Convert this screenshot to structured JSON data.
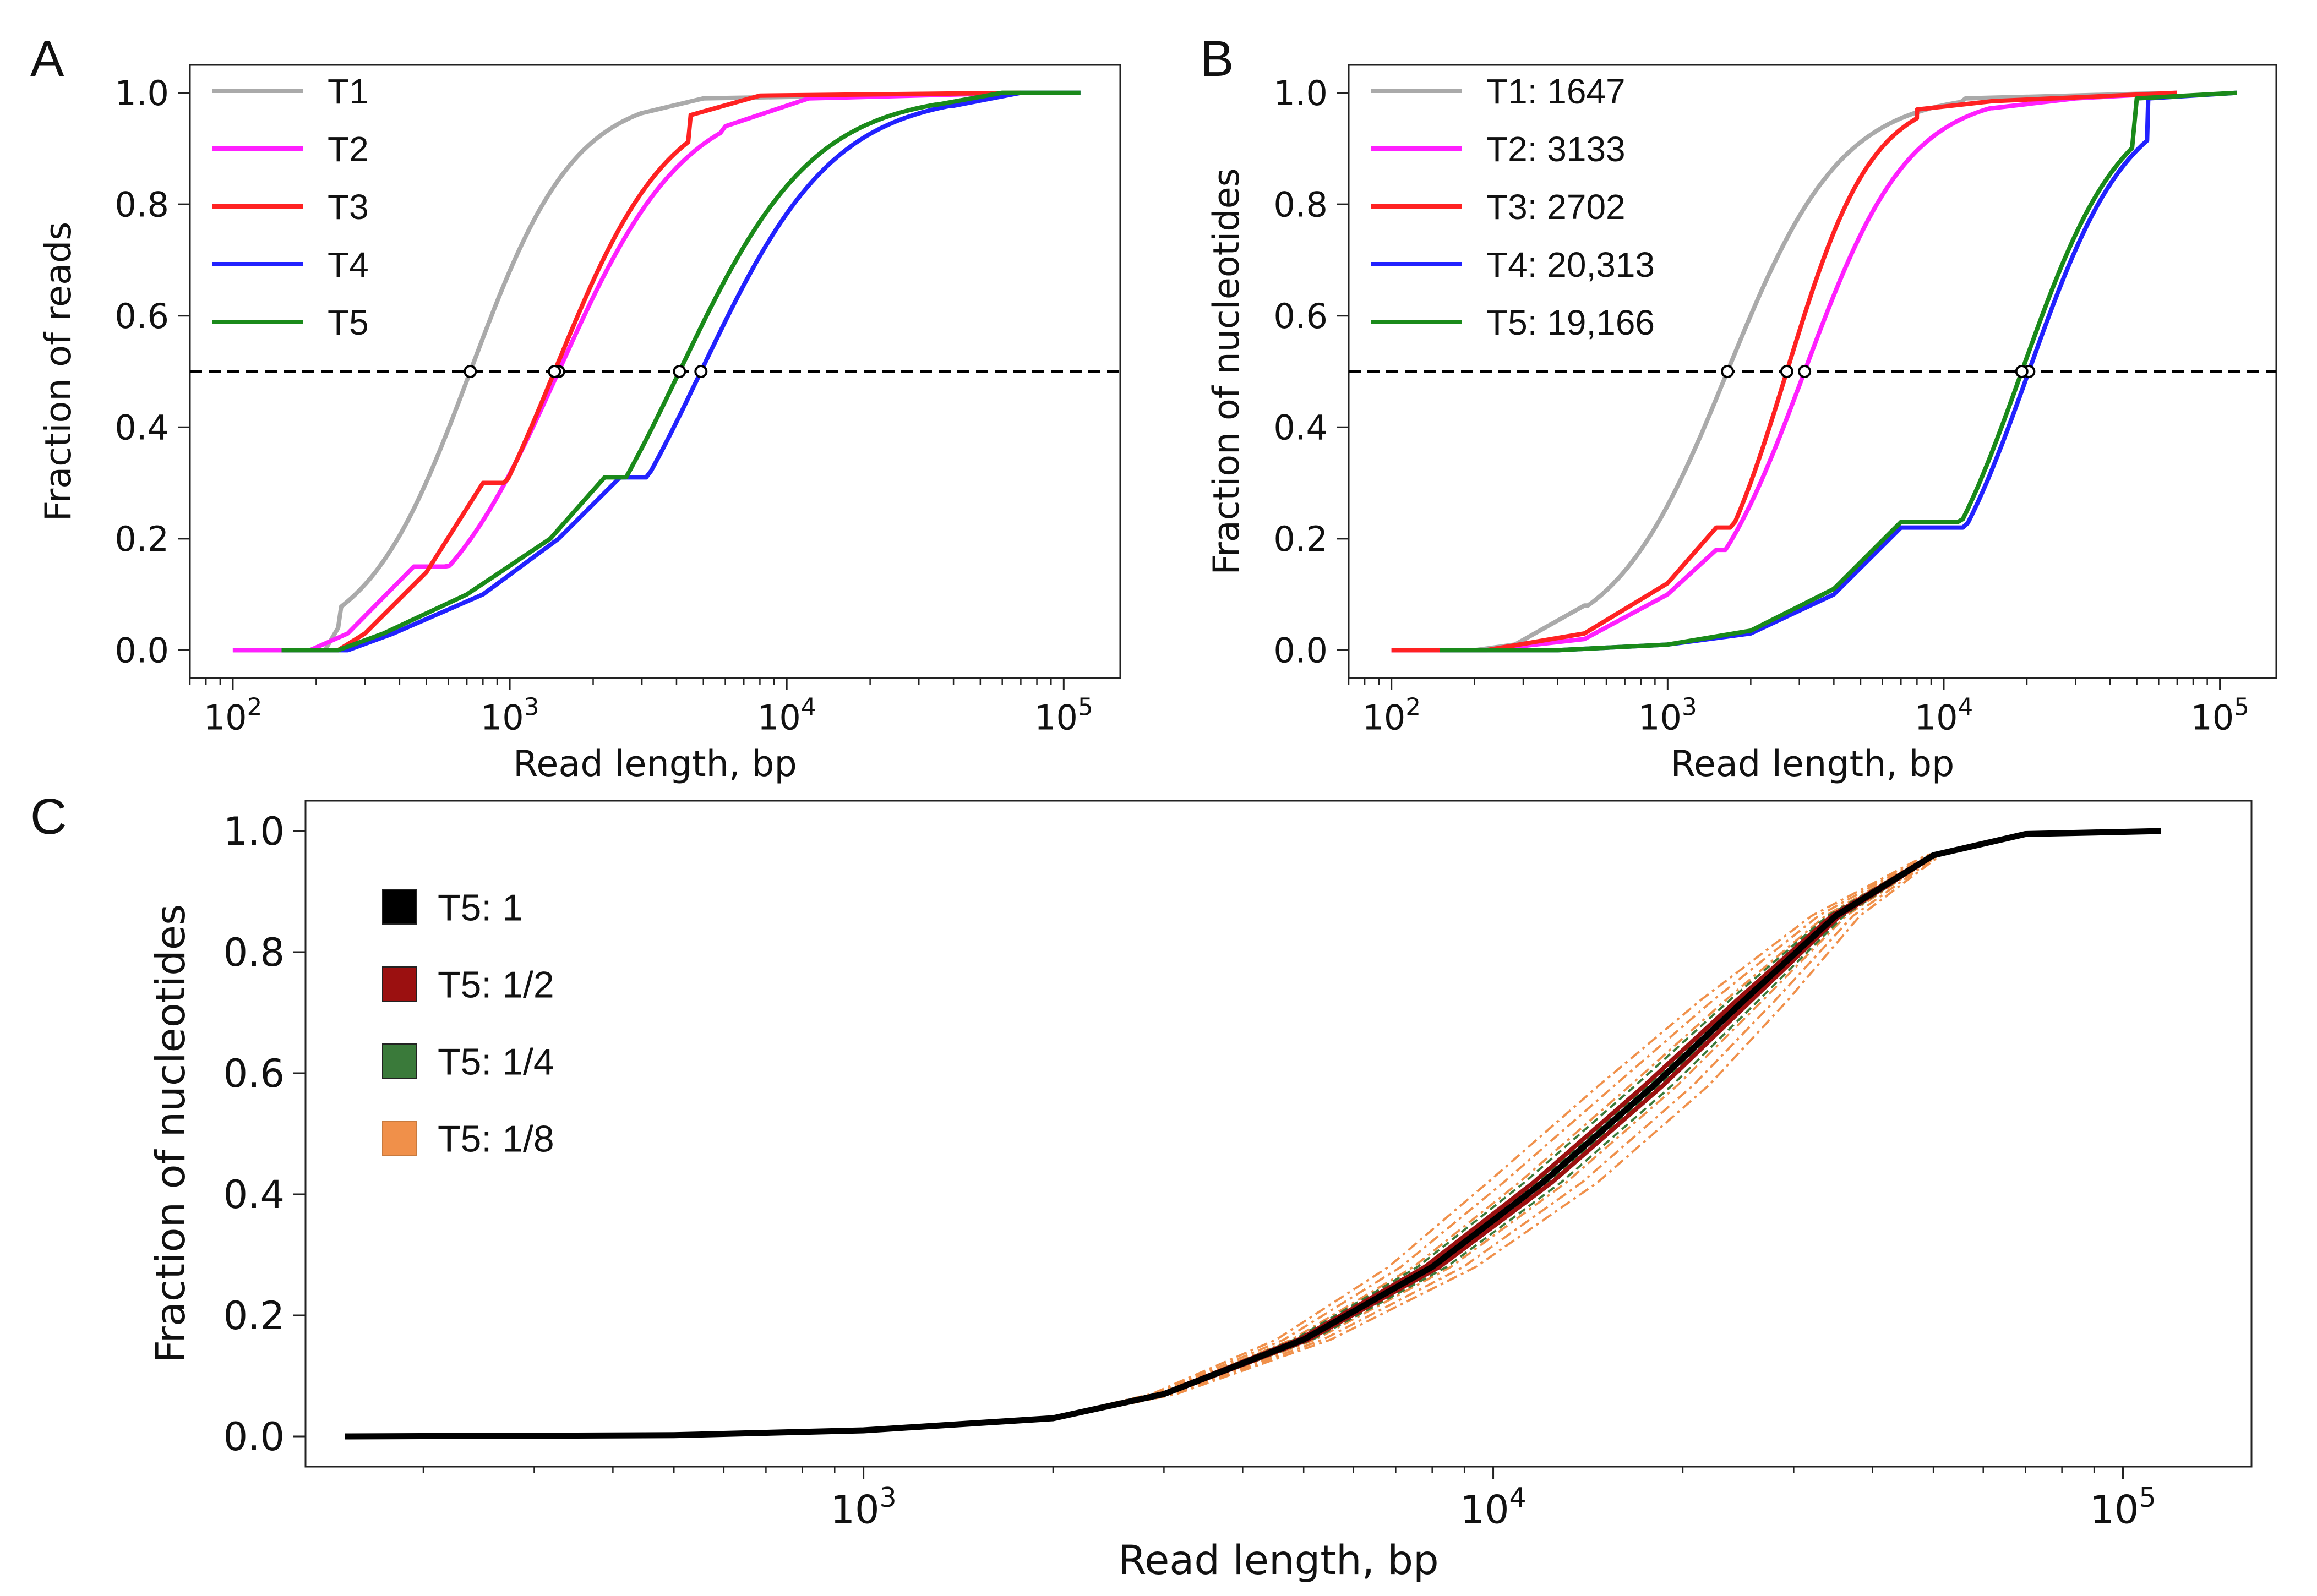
{
  "chart_data": [
    {
      "type": "line",
      "panel": "A",
      "xlabel": "Read length, bp",
      "ylabel": "Fraction of reads",
      "xscale": "log",
      "xlim": [
        70,
        160000
      ],
      "ylim": [
        -0.05,
        1.05
      ],
      "x_ticks": [
        {
          "v": 100,
          "m": "2"
        },
        {
          "v": 1000,
          "m": "3"
        },
        {
          "v": 10000,
          "m": "4"
        },
        {
          "v": 100000,
          "m": "5"
        }
      ],
      "x_tick_base": "10",
      "y_ticks": [
        "0.0",
        "0.2",
        "0.4",
        "0.6",
        "0.8",
        "1.0"
      ],
      "legend_position": "upper-left",
      "reference_line": {
        "y": 0.5,
        "style": "dashed"
      },
      "series": [
        {
          "name": "T1",
          "color": "#aaaaaa",
          "start": 100,
          "median": 720,
          "end": 70000,
          "k": 2.3,
          "pre": [
            [
              100,
              0
            ],
            [
              215,
              0
            ],
            [
              240,
              0.04
            ]
          ],
          "post": [
            [
              3000,
              0.96
            ],
            [
              5000,
              0.99
            ]
          ]
        },
        {
          "name": "T2",
          "color": "#ff20ff",
          "start": 100,
          "median": 1500,
          "end": 70000,
          "k": 1.9,
          "pre": [
            [
              100,
              0
            ],
            [
              190,
              0
            ],
            [
              260,
              0.03
            ],
            [
              450,
              0.15
            ]
          ],
          "post": [
            [
              6000,
              0.94
            ],
            [
              12000,
              0.99
            ]
          ]
        },
        {
          "name": "T3",
          "color": "#ff2222",
          "start": 150,
          "median": 1450,
          "end": 70000,
          "k": 2.1,
          "pre": [
            [
              150,
              0
            ],
            [
              240,
              0
            ],
            [
              300,
              0.03
            ],
            [
              500,
              0.14
            ],
            [
              800,
              0.3
            ]
          ],
          "post": [
            [
              4500,
              0.96
            ],
            [
              8000,
              0.995
            ]
          ]
        },
        {
          "name": "T4",
          "color": "#2222ff",
          "start": 150,
          "median": 4900,
          "end": 115000,
          "k": 1.8,
          "pre": [
            [
              150,
              0
            ],
            [
              260,
              0
            ],
            [
              380,
              0.03
            ],
            [
              800,
              0.1
            ],
            [
              1500,
              0.2
            ],
            [
              2500,
              0.31
            ]
          ],
          "post": [
            [
              40000,
              0.97
            ],
            [
              70000,
              1.0
            ]
          ]
        },
        {
          "name": "T5",
          "color": "#1a8a1a",
          "start": 150,
          "median": 4100,
          "end": 115000,
          "k": 1.8,
          "pre": [
            [
              150,
              0
            ],
            [
              240,
              0
            ],
            [
              350,
              0.03
            ],
            [
              700,
              0.1
            ],
            [
              1400,
              0.2
            ],
            [
              2200,
              0.31
            ]
          ],
          "post": [
            [
              35000,
              0.97
            ],
            [
              60000,
              1.0
            ]
          ]
        }
      ]
    },
    {
      "type": "line",
      "panel": "B",
      "xlabel": "Read length, bp",
      "ylabel": "Fraction of nucleotides",
      "xscale": "log",
      "xlim": [
        70,
        160000
      ],
      "ylim": [
        -0.05,
        1.05
      ],
      "x_ticks": [
        {
          "v": 100,
          "m": "2"
        },
        {
          "v": 1000,
          "m": "3"
        },
        {
          "v": 10000,
          "m": "4"
        },
        {
          "v": 100000,
          "m": "5"
        }
      ],
      "x_tick_base": "10",
      "y_ticks": [
        "0.0",
        "0.2",
        "0.4",
        "0.6",
        "0.8",
        "1.0"
      ],
      "legend_position": "upper-left",
      "reference_line": {
        "y": 0.5,
        "style": "dashed"
      },
      "series": [
        {
          "name": "T1: 1647",
          "color": "#aaaaaa",
          "start": 100,
          "median": 1647,
          "end": 70000,
          "k": 2.1,
          "pre": [
            [
              100,
              0
            ],
            [
              200,
              0
            ],
            [
              280,
              0.01
            ],
            [
              500,
              0.08
            ]
          ],
          "post": [
            [
              12000,
              0.99
            ]
          ]
        },
        {
          "name": "T2: 3133",
          "color": "#ff20ff",
          "start": 100,
          "median": 3133,
          "end": 70000,
          "k": 2.3,
          "pre": [
            [
              100,
              0
            ],
            [
              220,
              0
            ],
            [
              500,
              0.02
            ],
            [
              1000,
              0.1
            ],
            [
              1500,
              0.18
            ]
          ],
          "post": [
            [
              15000,
              0.97
            ],
            [
              30000,
              0.99
            ]
          ]
        },
        {
          "name": "T3: 2702",
          "color": "#ff2222",
          "start": 100,
          "median": 2702,
          "end": 70000,
          "k": 2.8,
          "pre": [
            [
              100,
              0
            ],
            [
              220,
              0
            ],
            [
              500,
              0.03
            ],
            [
              1000,
              0.12
            ],
            [
              1500,
              0.22
            ]
          ],
          "post": [
            [
              8000,
              0.97
            ],
            [
              15000,
              0.985
            ]
          ]
        },
        {
          "name": "T4: 20,313",
          "color": "#2222ff",
          "start": 150,
          "median": 20313,
          "end": 115000,
          "k": 2.4,
          "pre": [
            [
              150,
              0
            ],
            [
              400,
              0
            ],
            [
              1000,
              0.01
            ],
            [
              2000,
              0.03
            ],
            [
              4000,
              0.1
            ],
            [
              7000,
              0.22
            ]
          ],
          "post": [
            [
              55000,
              0.99
            ]
          ]
        },
        {
          "name": "T5: 19,166",
          "color": "#1a8a1a",
          "start": 150,
          "median": 19166,
          "end": 115000,
          "k": 2.4,
          "pre": [
            [
              150,
              0
            ],
            [
              400,
              0
            ],
            [
              1000,
              0.01
            ],
            [
              2000,
              0.035
            ],
            [
              4000,
              0.11
            ],
            [
              7000,
              0.23
            ]
          ],
          "post": [
            [
              50000,
              0.99
            ]
          ]
        }
      ]
    },
    {
      "type": "line",
      "panel": "C",
      "xlabel": "Read length, bp",
      "ylabel": "Fraction of nucleotides",
      "xscale": "log",
      "xlim": [
        130,
        160000
      ],
      "ylim": [
        -0.05,
        1.05
      ],
      "x_ticks": [
        {
          "v": 1000,
          "m": "3"
        },
        {
          "v": 10000,
          "m": "4"
        },
        {
          "v": 100000,
          "m": "5"
        }
      ],
      "x_tick_base": "10",
      "y_ticks": [
        "0.0",
        "0.2",
        "0.4",
        "0.6",
        "0.8",
        "1.0"
      ],
      "legend_position": "upper-left",
      "base_curve": [
        [
          150,
          0
        ],
        [
          500,
          0.002
        ],
        [
          1000,
          0.01
        ],
        [
          2000,
          0.03
        ],
        [
          3000,
          0.07
        ],
        [
          5000,
          0.16
        ],
        [
          8000,
          0.28
        ],
        [
          12000,
          0.42
        ],
        [
          18000,
          0.58
        ],
        [
          25000,
          0.72
        ],
        [
          35000,
          0.86
        ],
        [
          50000,
          0.96
        ],
        [
          70000,
          0.995
        ],
        [
          115000,
          1.0
        ]
      ],
      "series": [
        {
          "name": "T5: 1",
          "color": "#000000",
          "replicates": 1,
          "style": "solid"
        },
        {
          "name": "T5: 1/2",
          "color": "#9b1010",
          "replicates": 2,
          "style": "solid"
        },
        {
          "name": "T5: 1/4",
          "color": "#3a7a3a",
          "replicates": 4,
          "style": "dashed"
        },
        {
          "name": "T5: 1/8",
          "color": "#f0904a",
          "replicates": 8,
          "style": "dashdot"
        }
      ]
    }
  ]
}
